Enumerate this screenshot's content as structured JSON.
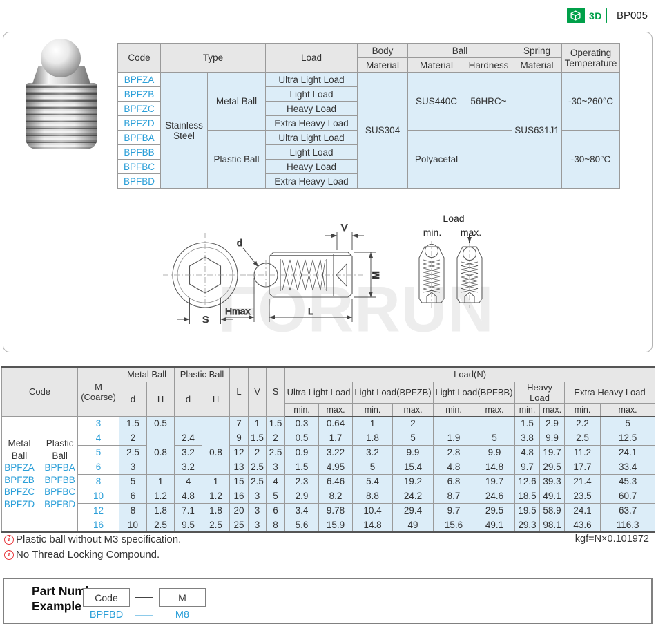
{
  "page": {
    "part_no": "BP005",
    "badge_3d": "3D"
  },
  "spec_table": {
    "headers": {
      "code": "Code",
      "type": "Type",
      "load": "Load",
      "body": "Body",
      "ball": "Ball",
      "spring": "Spring",
      "material": "Material",
      "hardness": "Hardness",
      "operating": "Operating Temperature"
    },
    "codes": [
      "BPFZA",
      "BPFZB",
      "BPFZC",
      "BPFZD",
      "BPFBA",
      "BPFBB",
      "BPFBC",
      "BPFBD"
    ],
    "type_material": "Stainless Steel",
    "ball_types": [
      "Metal Ball",
      "Plastic Ball"
    ],
    "load_levels": [
      "Ultra Light Load",
      "Light Load",
      "Heavy Load",
      "Extra Heavy Load"
    ],
    "body_material": "SUS304",
    "ball_materials": [
      "SUS440C",
      "Polyacetal"
    ],
    "hardness_values": [
      "56HRC~",
      "—"
    ],
    "spring_material": "SUS631J1",
    "operating_temps": [
      "-30~260°C",
      "-30~80°C"
    ]
  },
  "drawing": {
    "labels": {
      "d": "d",
      "v": "V",
      "m": "M",
      "s": "S",
      "hmax": "Hmax",
      "l": "L",
      "load": "Load",
      "min": "min.",
      "max": "max."
    },
    "watermark": "FORRUN"
  },
  "dim_table": {
    "headers": {
      "code": "Code",
      "m_line1": "M",
      "m_line2": "(Coarse)",
      "metal_ball": "Metal Ball",
      "plastic_ball": "Plastic Ball",
      "d": "d",
      "h": "H",
      "l": "L",
      "v": "V",
      "s": "S",
      "load_n": "Load(N)",
      "load_groups": [
        "Ultra Light Load",
        "Light Load(BPFZB)",
        "Light Load(BPFBB)",
        "Heavy Load",
        "Extra Heavy Load"
      ],
      "min": "min.",
      "max": "max."
    },
    "code_groups": [
      {
        "title": "Metal\nBall",
        "codes": [
          "BPFZA",
          "BPFZB",
          "BPFZC",
          "BPFZD"
        ]
      },
      {
        "title": "Plastic\nBall",
        "codes": [
          "BPFBA",
          "BPFBB",
          "BPFBC",
          "BPFBD"
        ]
      }
    ],
    "rows": [
      {
        "m": "3",
        "cells": [
          [
            "1.5",
            1
          ],
          [
            "0.5",
            1
          ],
          [
            "—",
            1
          ],
          [
            "—",
            1
          ]
        ],
        "l": "7",
        "v": "1",
        "s": "1.5",
        "loads": [
          "0.3",
          "0.64",
          "1",
          "2",
          "—",
          "—",
          "1.5",
          "2.9",
          "2.2",
          "5"
        ]
      },
      {
        "m": "4",
        "cells": [
          [
            "2",
            1
          ],
          [
            "0.8",
            3
          ],
          [
            "2.4",
            1
          ],
          [
            "0.8",
            3
          ]
        ],
        "l": "9",
        "v": "1.5",
        "s": "2",
        "loads": [
          "0.5",
          "1.7",
          "1.8",
          "5",
          "1.9",
          "5",
          "3.8",
          "9.9",
          "2.5",
          "12.5"
        ]
      },
      {
        "m": "5",
        "cells": [
          [
            "2.5",
            1
          ],
          null,
          [
            "3.2",
            1
          ],
          null
        ],
        "l": "12",
        "v": "2",
        "s": "2.5",
        "loads": [
          "0.9",
          "3.22",
          "3.2",
          "9.9",
          "2.8",
          "9.9",
          "4.8",
          "19.7",
          "11.2",
          "24.1"
        ]
      },
      {
        "m": "6",
        "cells": [
          [
            "3",
            1
          ],
          null,
          [
            "3.2",
            1
          ],
          null
        ],
        "l": "13",
        "v": "2.5",
        "s": "3",
        "loads": [
          "1.5",
          "4.95",
          "5",
          "15.4",
          "4.8",
          "14.8",
          "9.7",
          "29.5",
          "17.7",
          "33.4"
        ]
      },
      {
        "m": "8",
        "cells": [
          [
            "5",
            1
          ],
          [
            "1",
            1
          ],
          [
            "4",
            1
          ],
          [
            "1",
            1
          ]
        ],
        "l": "15",
        "v": "2.5",
        "s": "4",
        "loads": [
          "2.3",
          "6.46",
          "5.4",
          "19.2",
          "6.8",
          "19.7",
          "12.6",
          "39.3",
          "21.4",
          "45.3"
        ]
      },
      {
        "m": "10",
        "cells": [
          [
            "6",
            1
          ],
          [
            "1.2",
            1
          ],
          [
            "4.8",
            1
          ],
          [
            "1.2",
            1
          ]
        ],
        "l": "16",
        "v": "3",
        "s": "5",
        "loads": [
          "2.9",
          "8.2",
          "8.8",
          "24.2",
          "8.7",
          "24.6",
          "18.5",
          "49.1",
          "23.5",
          "60.7"
        ]
      },
      {
        "m": "12",
        "cells": [
          [
            "8",
            1
          ],
          [
            "1.8",
            1
          ],
          [
            "7.1",
            1
          ],
          [
            "1.8",
            1
          ]
        ],
        "l": "20",
        "v": "3",
        "s": "6",
        "loads": [
          "3.4",
          "9.78",
          "10.4",
          "29.4",
          "9.7",
          "29.5",
          "19.5",
          "58.9",
          "24.1",
          "63.7"
        ]
      },
      {
        "m": "16",
        "cells": [
          [
            "10",
            1
          ],
          [
            "2.5",
            1
          ],
          [
            "9.5",
            1
          ],
          [
            "2.5",
            1
          ]
        ],
        "l": "25",
        "v": "3",
        "s": "8",
        "loads": [
          "5.6",
          "15.9",
          "14.8",
          "49",
          "15.6",
          "49.1",
          "29.3",
          "98.1",
          "43.6",
          "116.3"
        ]
      }
    ]
  },
  "notes": {
    "items": [
      "Plastic ball without M3 specification.",
      "No Thread Locking Compound."
    ],
    "conversion": "kgf=N×0.101972"
  },
  "part_number_example": {
    "label_line1": "Part Number",
    "label_line2": "Example",
    "code_box": "Code",
    "m_box": "M",
    "example_code": "BPFBD",
    "example_m": "M8"
  }
}
